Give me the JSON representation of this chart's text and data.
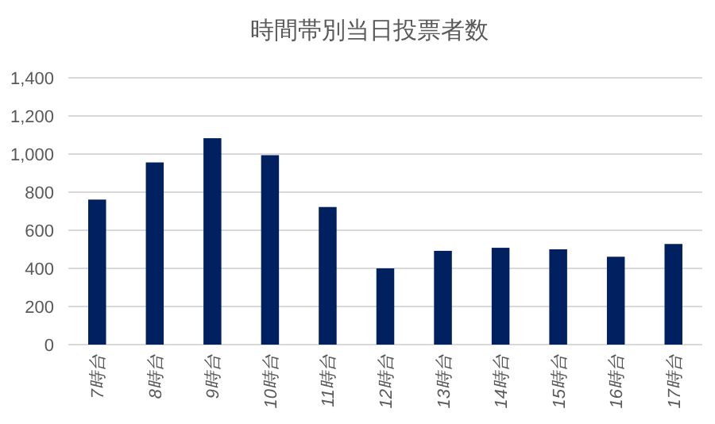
{
  "chart_data": {
    "type": "bar",
    "title": "時間帯別当日投票者数",
    "categories": [
      "7時台",
      "8時台",
      "9時台",
      "10時台",
      "11時台",
      "12時台",
      "13時台",
      "14時台",
      "15時台",
      "16時台",
      "17時台"
    ],
    "values": [
      761,
      956,
      1083,
      994,
      722,
      400,
      492,
      508,
      500,
      461,
      528
    ],
    "color": "#002060",
    "ylim": [
      0,
      1400
    ],
    "yticks": [
      0,
      {
        "value": 200,
        "label": "200"
      },
      {
        "value": 400,
        "label": "400"
      },
      {
        "value": 600,
        "label": "600"
      },
      {
        "value": 800,
        "label": "800"
      },
      {
        "value": 1000,
        "label": "1,000"
      },
      {
        "value": 1200,
        "label": "1,200"
      },
      {
        "value": 1400,
        "label": "1,400"
      }
    ],
    "grid": "y",
    "legend": false
  }
}
